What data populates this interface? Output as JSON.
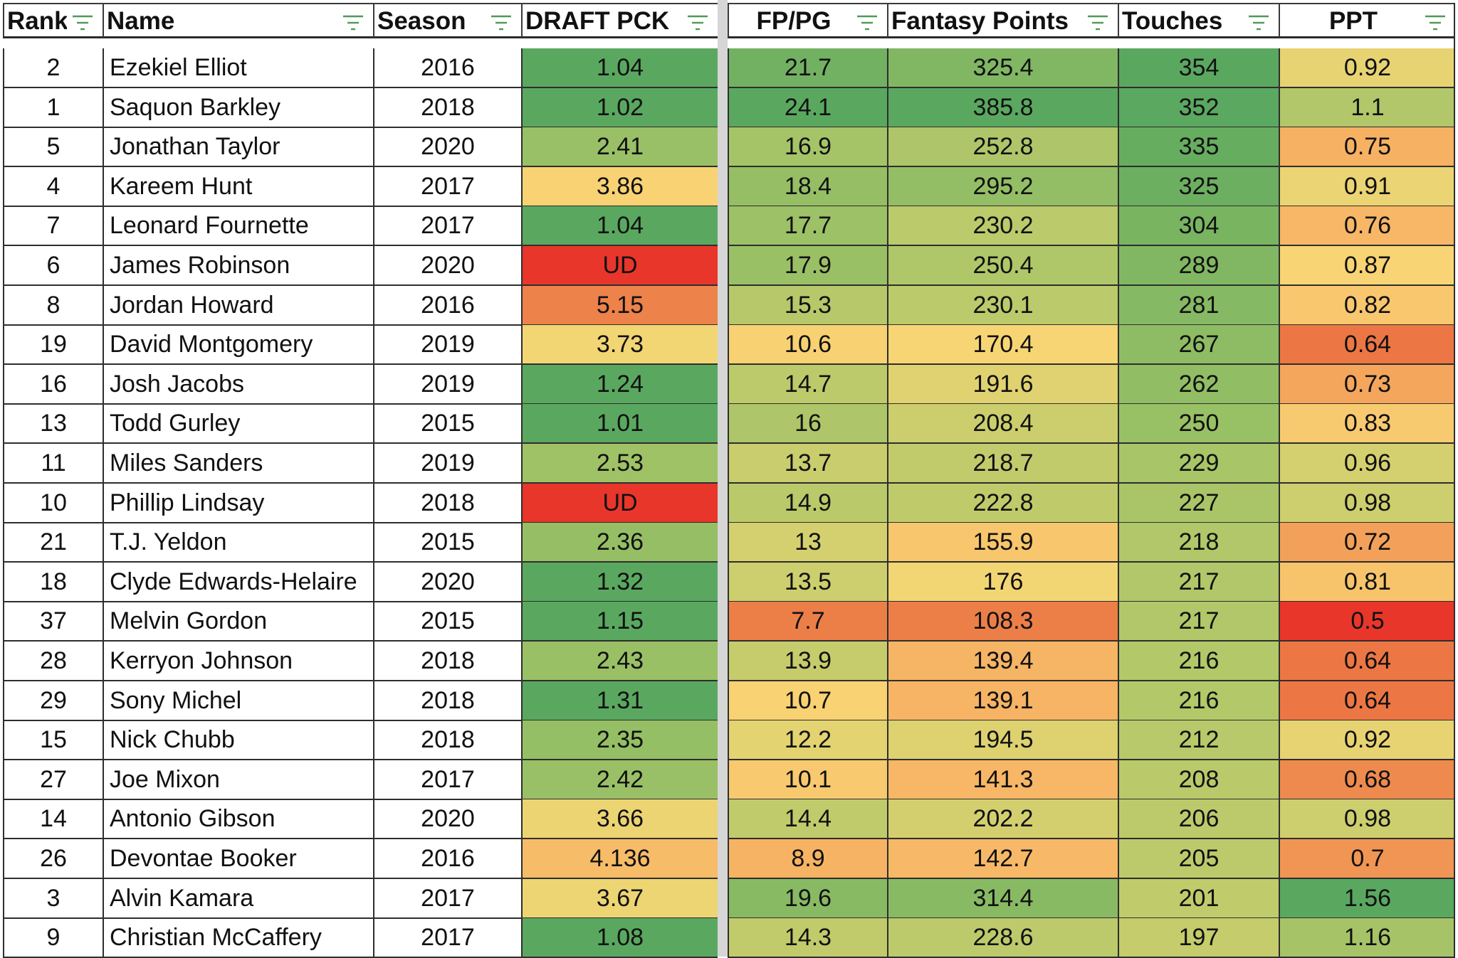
{
  "headers": [
    "Rank",
    "Name",
    "Season",
    "DRAFT PCK",
    "FP/PG",
    "Fantasy Points",
    "Touches",
    "PPT"
  ],
  "filter_icon": "filter-lines-icon",
  "colors": {
    "deep_green": "#5aa860",
    "green": "#7bb561",
    "light_green": "#9ec266",
    "yellow_green": "#c4cc6c",
    "yellow": "#f8d775",
    "light_orange": "#f7b766",
    "orange": "#f19c56",
    "dark_orange": "#ec7f48",
    "red": "#e8362b",
    "frozen_divider": "#d6d6d6"
  },
  "rows": [
    {
      "rank": "2",
      "name": "Ezekiel Elliot",
      "season": "2016",
      "draft": "1.04",
      "fppg": "21.7",
      "fp": "325.4",
      "touches": "354",
      "ppt": "0.92"
    },
    {
      "rank": "1",
      "name": "Saquon Barkley",
      "season": "2018",
      "draft": "1.02",
      "fppg": "24.1",
      "fp": "385.8",
      "touches": "352",
      "ppt": "1.1"
    },
    {
      "rank": "5",
      "name": "Jonathan Taylor",
      "season": "2020",
      "draft": "2.41",
      "fppg": "16.9",
      "fp": "252.8",
      "touches": "335",
      "ppt": "0.75"
    },
    {
      "rank": "4",
      "name": "Kareem Hunt",
      "season": "2017",
      "draft": "3.86",
      "fppg": "18.4",
      "fp": "295.2",
      "touches": "325",
      "ppt": "0.91"
    },
    {
      "rank": "7",
      "name": "Leonard Fournette",
      "season": "2017",
      "draft": "1.04",
      "fppg": "17.7",
      "fp": "230.2",
      "touches": "304",
      "ppt": "0.76"
    },
    {
      "rank": "6",
      "name": "James Robinson",
      "season": "2020",
      "draft": "UD",
      "fppg": "17.9",
      "fp": "250.4",
      "touches": "289",
      "ppt": "0.87"
    },
    {
      "rank": "8",
      "name": "Jordan Howard",
      "season": "2016",
      "draft": "5.15",
      "fppg": "15.3",
      "fp": "230.1",
      "touches": "281",
      "ppt": "0.82"
    },
    {
      "rank": "19",
      "name": "David Montgomery",
      "season": "2019",
      "draft": "3.73",
      "fppg": "10.6",
      "fp": "170.4",
      "touches": "267",
      "ppt": "0.64"
    },
    {
      "rank": "16",
      "name": "Josh Jacobs",
      "season": "2019",
      "draft": "1.24",
      "fppg": "14.7",
      "fp": "191.6",
      "touches": "262",
      "ppt": "0.73"
    },
    {
      "rank": "13",
      "name": "Todd Gurley",
      "season": "2015",
      "draft": "1.01",
      "fppg": "16",
      "fp": "208.4",
      "touches": "250",
      "ppt": "0.83"
    },
    {
      "rank": "11",
      "name": "Miles Sanders",
      "season": "2019",
      "draft": "2.53",
      "fppg": "13.7",
      "fp": "218.7",
      "touches": "229",
      "ppt": "0.96"
    },
    {
      "rank": "10",
      "name": "Phillip Lindsay",
      "season": "2018",
      "draft": "UD",
      "fppg": "14.9",
      "fp": "222.8",
      "touches": "227",
      "ppt": "0.98"
    },
    {
      "rank": "21",
      "name": "T.J. Yeldon",
      "season": "2015",
      "draft": "2.36",
      "fppg": "13",
      "fp": "155.9",
      "touches": "218",
      "ppt": "0.72"
    },
    {
      "rank": "18",
      "name": "Clyde Edwards-Helaire",
      "season": "2020",
      "draft": "1.32",
      "fppg": "13.5",
      "fp": "176",
      "touches": "217",
      "ppt": "0.81"
    },
    {
      "rank": "37",
      "name": "Melvin Gordon",
      "season": "2015",
      "draft": "1.15",
      "fppg": "7.7",
      "fp": "108.3",
      "touches": "217",
      "ppt": "0.5"
    },
    {
      "rank": "28",
      "name": "Kerryon Johnson",
      "season": "2018",
      "draft": "2.43",
      "fppg": "13.9",
      "fp": "139.4",
      "touches": "216",
      "ppt": "0.64"
    },
    {
      "rank": "29",
      "name": "Sony Michel",
      "season": "2018",
      "draft": "1.31",
      "fppg": "10.7",
      "fp": "139.1",
      "touches": "216",
      "ppt": "0.64"
    },
    {
      "rank": "15",
      "name": "Nick Chubb",
      "season": "2018",
      "draft": "2.35",
      "fppg": "12.2",
      "fp": "194.5",
      "touches": "212",
      "ppt": "0.92"
    },
    {
      "rank": "27",
      "name": "Joe Mixon",
      "season": "2017",
      "draft": "2.42",
      "fppg": "10.1",
      "fp": "141.3",
      "touches": "208",
      "ppt": "0.68"
    },
    {
      "rank": "14",
      "name": "Antonio Gibson",
      "season": "2020",
      "draft": "3.66",
      "fppg": "14.4",
      "fp": "202.2",
      "touches": "206",
      "ppt": "0.98"
    },
    {
      "rank": "26",
      "name": "Devontae Booker",
      "season": "2016",
      "draft": "4.136",
      "fppg": "8.9",
      "fp": "142.7",
      "touches": "205",
      "ppt": "0.7"
    },
    {
      "rank": "3",
      "name": "Alvin Kamara",
      "season": "2017",
      "draft": "3.67",
      "fppg": "19.6",
      "fp": "314.4",
      "touches": "201",
      "ppt": "1.56"
    },
    {
      "rank": "9",
      "name": "Christian McCaffery",
      "season": "2017",
      "draft": "1.08",
      "fppg": "14.3",
      "fp": "228.6",
      "touches": "197",
      "ppt": "1.16"
    }
  ]
}
